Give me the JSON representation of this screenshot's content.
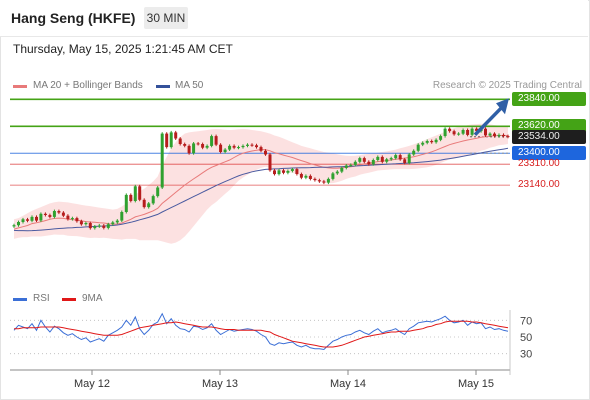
{
  "header": {
    "title": "Hang Seng (HKFE)",
    "timeframe": "30 MIN",
    "datetime": "Thursday, May 15, 2025 1:21:45 AM CET"
  },
  "legend": {
    "ma20": "MA 20 + Bollinger Bands",
    "ma50": "MA 50",
    "credit": "Research © 2025 Trading Central",
    "rsi": "RSI",
    "ma9": "9MA"
  },
  "colors": {
    "ma20": "#e87a7a",
    "ma50": "#4a5aa0",
    "band_fill": "#fbdcdc",
    "bull": "#2fa12f",
    "bear": "#b61d1d",
    "resistance": "#44a316",
    "pivot": "#1e66dd",
    "support": "#d82020",
    "rsi": "#3b6fd6",
    "rsi_ma": "#e01818"
  },
  "chart_data": {
    "type": "candlestick",
    "xlabels": [
      "May 12",
      "May 13",
      "May 14",
      "May 15"
    ],
    "ylim": [
      22430,
      23900
    ],
    "levels": [
      {
        "label": "23840.00",
        "value": 23840,
        "kind": "resistance"
      },
      {
        "label": "23620.00",
        "value": 23620,
        "kind": "resistance"
      },
      {
        "label": "23534.00",
        "value": 23534,
        "kind": "last"
      },
      {
        "label": "23400.00",
        "value": 23400,
        "kind": "pivot"
      },
      {
        "label": "23310.00",
        "value": 23310,
        "kind": "support"
      },
      {
        "label": "23140.00",
        "value": 23140,
        "kind": "support"
      }
    ],
    "close": [
      22812,
      22838,
      22860,
      22848,
      22880,
      22850,
      22905,
      22895,
      22880,
      22928,
      22915,
      22890,
      22862,
      22870,
      22845,
      22820,
      22830,
      22788,
      22802,
      22810,
      22790,
      22820,
      22835,
      22850,
      22920,
      23060,
      23010,
      23130,
      23020,
      22960,
      22990,
      23050,
      23120,
      23560,
      23450,
      23570,
      23520,
      23475,
      23460,
      23400,
      23480,
      23475,
      23445,
      23460,
      23540,
      23470,
      23410,
      23430,
      23460,
      23445,
      23450,
      23460,
      23470,
      23465,
      23450,
      23420,
      23390,
      23260,
      23230,
      23260,
      23240,
      23255,
      23270,
      23230,
      23200,
      23215,
      23190,
      23180,
      23170,
      23160,
      23190,
      23235,
      23250,
      23280,
      23300,
      23305,
      23330,
      23360,
      23330,
      23310,
      23345,
      23370,
      23330,
      23350,
      23360,
      23385,
      23350,
      23320,
      23390,
      23420,
      23470,
      23485,
      23500,
      23490,
      23510,
      23540,
      23600,
      23580,
      23555,
      23560,
      23590,
      23550,
      23600,
      23580,
      23600,
      23545,
      23560,
      23540,
      23550,
      23540,
      23534
    ],
    "ma20": [
      22780,
      22790,
      22800,
      22810,
      22825,
      22832,
      22840,
      22850,
      22860,
      22868,
      22870,
      22868,
      22862,
      22858,
      22854,
      22848,
      22842,
      22838,
      22836,
      22832,
      22830,
      22825,
      22820,
      22822,
      22830,
      22845,
      22860,
      22880,
      22890,
      22900,
      22915,
      22930,
      22950,
      22990,
      23020,
      23050,
      23080,
      23110,
      23140,
      23165,
      23190,
      23215,
      23240,
      23265,
      23285,
      23300,
      23315,
      23330,
      23345,
      23365,
      23385,
      23400,
      23410,
      23418,
      23425,
      23430,
      23430,
      23420,
      23405,
      23395,
      23385,
      23375,
      23365,
      23352,
      23340,
      23328,
      23315,
      23305,
      23295,
      23285,
      23280,
      23278,
      23278,
      23280,
      23285,
      23290,
      23295,
      23305,
      23312,
      23318,
      23325,
      23332,
      23336,
      23340,
      23345,
      23350,
      23355,
      23360,
      23365,
      23372,
      23380,
      23390,
      23400,
      23412,
      23425,
      23440,
      23455,
      23470,
      23480,
      23490,
      23500,
      23508,
      23515,
      23522,
      23530,
      23535,
      23540,
      23542,
      23545,
      23545,
      23545
    ],
    "bb_upper": [
      22860,
      22870,
      22890,
      22910,
      22930,
      22945,
      22960,
      22975,
      22990,
      23000,
      23005,
      23002,
      22998,
      22992,
      22985,
      22978,
      22972,
      22968,
      22962,
      22956,
      22950,
      22945,
      22940,
      22945,
      22965,
      22990,
      23020,
      23060,
      23090,
      23110,
      23140,
      23170,
      23210,
      23300,
      23370,
      23440,
      23490,
      23530,
      23560,
      23570,
      23575,
      23580,
      23585,
      23590,
      23595,
      23598,
      23595,
      23592,
      23590,
      23592,
      23595,
      23598,
      23595,
      23590,
      23585,
      23580,
      23570,
      23560,
      23545,
      23535,
      23520,
      23505,
      23490,
      23475,
      23460,
      23450,
      23440,
      23430,
      23420,
      23410,
      23405,
      23400,
      23392,
      23385,
      23380,
      23378,
      23380,
      23385,
      23390,
      23395,
      23400,
      23405,
      23410,
      23415,
      23422,
      23430,
      23440,
      23450,
      23460,
      23472,
      23485,
      23500,
      23515,
      23530,
      23545,
      23560,
      23575,
      23590,
      23605,
      23615,
      23620,
      23630,
      23635,
      23638,
      23640,
      23640,
      23635,
      23630,
      23625,
      23620,
      23615
    ],
    "bb_lower": [
      22700,
      22710,
      22715,
      22715,
      22720,
      22720,
      22720,
      22725,
      22730,
      22736,
      22735,
      22734,
      22726,
      22724,
      22723,
      22718,
      22712,
      22708,
      22710,
      22708,
      22710,
      22705,
      22700,
      22699,
      22695,
      22700,
      22700,
      22700,
      22690,
      22690,
      22690,
      22690,
      22690,
      22680,
      22670,
      22660,
      22670,
      22690,
      22720,
      22760,
      22805,
      22850,
      22895,
      22940,
      22975,
      23002,
      23035,
      23068,
      23100,
      23138,
      23175,
      23202,
      23225,
      23246,
      23265,
      23280,
      23290,
      23280,
      23265,
      23255,
      23250,
      23245,
      23240,
      23229,
      23220,
      23206,
      23190,
      23180,
      23170,
      23160,
      23155,
      23156,
      23164,
      23175,
      23190,
      23202,
      23210,
      23225,
      23234,
      23241,
      23250,
      23259,
      23262,
      23265,
      23268,
      23270,
      23270,
      23270,
      23270,
      23272,
      23275,
      23280,
      23285,
      23294,
      23305,
      23320,
      23335,
      23350,
      23355,
      23365,
      23380,
      23386,
      23395,
      23406,
      23420,
      23430,
      23445,
      23454,
      23465,
      23470,
      23475
    ],
    "ma50": [
      22770,
      22768,
      22768,
      22767,
      22768,
      22770,
      22772,
      22775,
      22778,
      22782,
      22785,
      22788,
      22790,
      22792,
      22794,
      22796,
      22798,
      22800,
      22802,
      22804,
      22806,
      22808,
      22810,
      22814,
      22820,
      22828,
      22836,
      22846,
      22856,
      22866,
      22876,
      22888,
      22900,
      22920,
      22938,
      22956,
      22974,
      22992,
      23010,
      23028,
      23046,
      23064,
      23082,
      23100,
      23118,
      23136,
      23152,
      23168,
      23184,
      23200,
      23215,
      23228,
      23238,
      23248,
      23256,
      23262,
      23268,
      23270,
      23272,
      23274,
      23276,
      23278,
      23279,
      23280,
      23281,
      23282,
      23283,
      23284,
      23285,
      23286,
      23287,
      23288,
      23289,
      23290,
      23292,
      23294,
      23296,
      23298,
      23300,
      23302,
      23304,
      23306,
      23308,
      23310,
      23312,
      23314,
      23316,
      23318,
      23320,
      23322,
      23325,
      23328,
      23332,
      23336,
      23340,
      23344,
      23350,
      23356,
      23362,
      23368,
      23375,
      23382,
      23389,
      23396,
      23403,
      23410,
      23416,
      23422,
      23428,
      23434,
      23440
    ],
    "rsi": {
      "ylim": [
        20,
        80
      ],
      "ticks": [
        70,
        50,
        30
      ],
      "rsi": [
        58,
        64,
        62,
        60,
        66,
        58,
        70,
        62,
        56,
        63,
        60,
        55,
        52,
        54,
        50,
        47,
        49,
        44,
        46,
        48,
        45,
        52,
        55,
        58,
        62,
        70,
        64,
        74,
        60,
        53,
        58,
        65,
        68,
        78,
        66,
        72,
        64,
        60,
        59,
        56,
        63,
        62,
        59,
        61,
        66,
        58,
        53,
        56,
        59,
        57,
        58,
        59,
        60,
        59,
        57,
        53,
        50,
        42,
        40,
        43,
        42,
        43,
        44,
        40,
        38,
        40,
        37,
        36,
        36,
        35,
        40,
        45,
        47,
        50,
        52,
        53,
        56,
        58,
        55,
        53,
        57,
        60,
        55,
        57,
        58,
        60,
        56,
        53,
        60,
        63,
        67,
        68,
        69,
        68,
        70,
        72,
        75,
        70,
        67,
        68,
        70,
        64,
        68,
        66,
        67,
        60,
        62,
        59,
        60,
        58,
        57
      ],
      "ma9": [
        60,
        60,
        61,
        61,
        61,
        61,
        62,
        62,
        62,
        62,
        62,
        61,
        60,
        59,
        58,
        57,
        56,
        55,
        54,
        53,
        52,
        52,
        52,
        52,
        53,
        55,
        57,
        59,
        61,
        62,
        63,
        64,
        65,
        66,
        67,
        67,
        68,
        67,
        66,
        65,
        64,
        63,
        62,
        62,
        62,
        61,
        60,
        59,
        59,
        59,
        58,
        58,
        58,
        58,
        58,
        58,
        57,
        56,
        53,
        51,
        49,
        47,
        45,
        44,
        43,
        42,
        41,
        40,
        39,
        38,
        38,
        38,
        39,
        40,
        42,
        44,
        46,
        48,
        50,
        51,
        52,
        53,
        54,
        55,
        56,
        56,
        57,
        57,
        57,
        58,
        59,
        60,
        62,
        63,
        65,
        66,
        68,
        69,
        69,
        69,
        69,
        69,
        68,
        68,
        67,
        66,
        65,
        64,
        63,
        62,
        61
      ]
    }
  }
}
